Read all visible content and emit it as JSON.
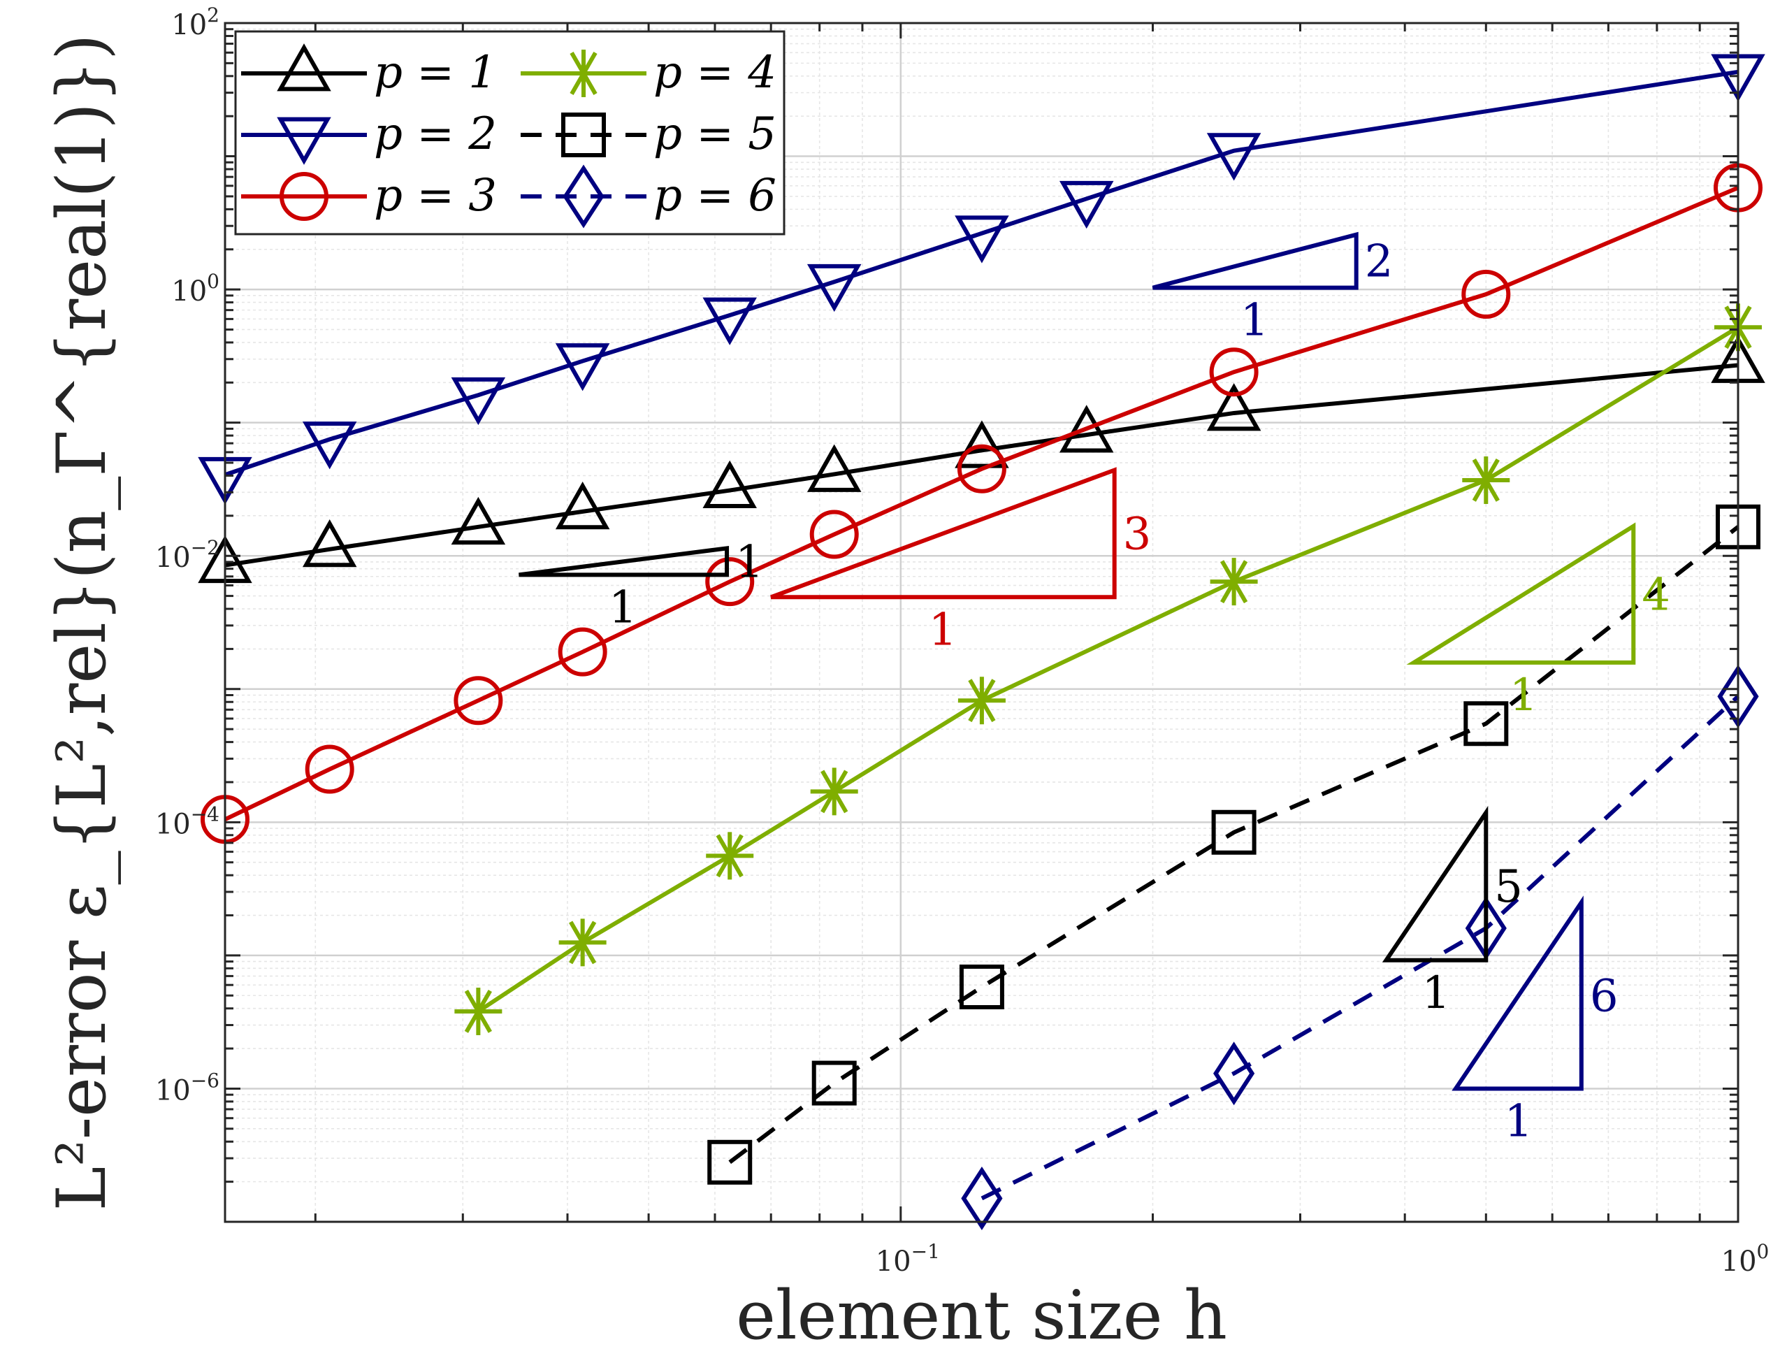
{
  "chart_data": {
    "type": "line",
    "xlabel": "element size h",
    "ylabel": "L²-error ε_{L²,rel}(n_Γ^{real(1)})",
    "x_scale": "log",
    "y_scale": "log",
    "xlim": [
      0.0156,
      1.0
    ],
    "ylim": [
      1e-07,
      100
    ],
    "grid": true,
    "legend_position": "top-left",
    "x_ticks": [
      {
        "value": 0.1,
        "base": "10",
        "exp": "−1"
      },
      {
        "value": 1,
        "base": "10",
        "exp": "0"
      }
    ],
    "y_ticks": [
      {
        "value": 1e-06,
        "base": "10",
        "exp": "−6"
      },
      {
        "value": 0.0001,
        "base": "10",
        "exp": "−4"
      },
      {
        "value": 0.01,
        "base": "10",
        "exp": "−2"
      },
      {
        "value": 1,
        "base": "10",
        "exp": "0"
      },
      {
        "value": 100,
        "base": "10",
        "exp": "2"
      }
    ],
    "series": [
      {
        "name": "p = 1",
        "color": "#000000",
        "marker": "triangle-up",
        "dash": "solid",
        "x": [
          0.0156,
          0.0208,
          0.0313,
          0.0417,
          0.0625,
          0.0833,
          0.125,
          0.1667,
          0.25,
          1.0
        ],
        "y": [
          0.0085,
          0.0112,
          0.0165,
          0.0215,
          0.031,
          0.041,
          0.062,
          0.081,
          0.118,
          0.27
        ]
      },
      {
        "name": "p = 2",
        "color": "#000080",
        "marker": "triangle-down",
        "dash": "solid",
        "x": [
          0.0156,
          0.0208,
          0.0313,
          0.0417,
          0.0625,
          0.0833,
          0.125,
          0.1667,
          0.25,
          1.0
        ],
        "y": [
          0.0406,
          0.075,
          0.161,
          0.29,
          0.64,
          1.14,
          2.64,
          4.8,
          11.0,
          43.0
        ]
      },
      {
        "name": "p = 3",
        "color": "#cc0000",
        "marker": "circle",
        "dash": "solid",
        "x": [
          0.0156,
          0.0208,
          0.0313,
          0.0417,
          0.0625,
          0.0833,
          0.125,
          0.25,
          0.5,
          1.0
        ],
        "y": [
          0.000105,
          0.00025,
          0.00082,
          0.0019,
          0.0064,
          0.0145,
          0.045,
          0.24,
          0.92,
          5.8
        ]
      },
      {
        "name": "p = 4",
        "color": "#7fae00",
        "marker": "asterisk",
        "dash": "solid",
        "x": [
          0.0313,
          0.0417,
          0.0625,
          0.0833,
          0.125,
          0.25,
          0.5,
          1.0
        ],
        "y": [
          3.8e-06,
          1.25e-05,
          5.6e-05,
          0.00017,
          0.00082,
          0.0064,
          0.037,
          0.52
        ]
      },
      {
        "name": "p = 5",
        "color": "#000000",
        "marker": "square",
        "dash": "dashed",
        "x": [
          0.0625,
          0.0833,
          0.125,
          0.25,
          0.5,
          1.0
        ],
        "y": [
          2.8e-07,
          1.1e-06,
          5.8e-06,
          8.4e-05,
          0.00055,
          0.0165
        ]
      },
      {
        "name": "p = 6",
        "color": "#000080",
        "marker": "diamond",
        "dash": "dashed",
        "x": [
          0.125,
          0.25,
          0.5,
          1.0
        ],
        "y": [
          1.5e-07,
          1.3e-06,
          1.6e-05,
          0.00088
        ]
      }
    ],
    "slope_triangles": [
      {
        "color": "#000000",
        "x0": 0.035,
        "x1": 0.062,
        "y0": 0.0072,
        "y1": 0.0114,
        "run": "1",
        "rise": "1"
      },
      {
        "color": "#000080",
        "x0": 0.2,
        "x1": 0.35,
        "y0": 1.03,
        "y1": 2.58,
        "run": "1",
        "rise": "2"
      },
      {
        "color": "#cc0000",
        "x0": 0.07,
        "x1": 0.18,
        "y0": 0.0049,
        "y1": 0.044,
        "run": "1",
        "rise": "3"
      },
      {
        "color": "#7fae00",
        "x0": 0.41,
        "x1": 0.75,
        "y0": 0.00158,
        "y1": 0.0167,
        "run": "1",
        "rise": "4"
      },
      {
        "color": "#000000",
        "x0": 0.38,
        "x1": 0.5,
        "y0": 9.2e-06,
        "y1": 0.000118,
        "run": "1",
        "rise": "5"
      },
      {
        "color": "#000080",
        "x0": 0.46,
        "x1": 0.65,
        "y0": 1e-06,
        "y1": 2.5e-05,
        "run": "1",
        "rise": "6"
      }
    ]
  }
}
